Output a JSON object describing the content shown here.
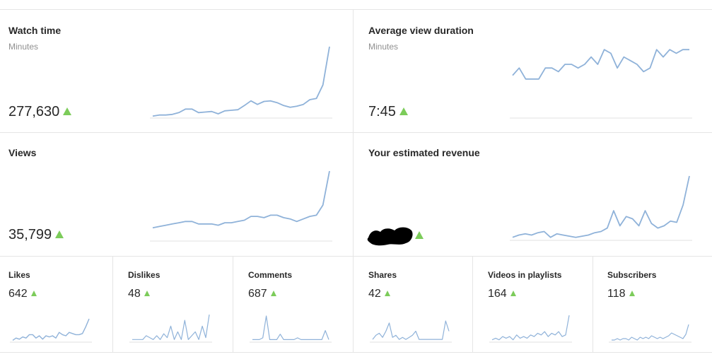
{
  "colors": {
    "line": "#8fb2d9",
    "baseline": "#e0e0e0",
    "up": "#7ccc5a",
    "divider": "#e5e5e5"
  },
  "icons": {
    "trend": "up-triangle-icon"
  },
  "big_cards": [
    {
      "title": "Watch time",
      "subtitle": "Minutes",
      "value": "277,630",
      "trend": "up",
      "values": [
        2,
        4,
        4,
        5,
        8,
        14,
        14,
        8,
        9,
        10,
        6,
        11,
        12,
        13,
        20,
        28,
        22,
        27,
        28,
        25,
        20,
        17,
        19,
        22,
        30,
        32,
        55,
        120
      ]
    },
    {
      "title": "Average view duration",
      "subtitle": "Minutes",
      "value": "7:45",
      "trend": "up",
      "values": [
        10,
        12,
        9,
        9,
        9,
        12,
        12,
        11,
        13,
        13,
        12,
        13,
        15,
        13,
        17,
        16,
        12,
        15,
        14,
        13,
        11,
        12,
        17,
        15,
        17,
        16,
        17,
        17
      ]
    },
    {
      "title": "Views",
      "subtitle": "",
      "value": "35,799",
      "trend": "up",
      "values": [
        10,
        11,
        12,
        13,
        14,
        15,
        15,
        13,
        13,
        13,
        12,
        14,
        14,
        15,
        16,
        19,
        19,
        18,
        20,
        20,
        18,
        17,
        15,
        17,
        19,
        20,
        28,
        55
      ]
    },
    {
      "title": "Your estimated revenue",
      "subtitle": "",
      "value": "",
      "trend": "up",
      "redacted": true,
      "values": [
        2,
        4,
        5,
        4,
        6,
        7,
        2,
        5,
        4,
        3,
        2,
        3,
        4,
        6,
        7,
        10,
        25,
        12,
        20,
        18,
        12,
        25,
        14,
        10,
        12,
        16,
        15,
        30,
        55
      ]
    }
  ],
  "small_cards": [
    {
      "title": "Likes",
      "value": "642",
      "trend": "up",
      "values": [
        1,
        3,
        2,
        4,
        3,
        6,
        6,
        3,
        5,
        2,
        5,
        4,
        5,
        3,
        8,
        6,
        5,
        8,
        7,
        6,
        6,
        7,
        13,
        20
      ]
    },
    {
      "title": "Dislikes",
      "value": "48",
      "trend": "up",
      "values": [
        1,
        1,
        1,
        1,
        3,
        2,
        1,
        3,
        1,
        4,
        2,
        8,
        1,
        5,
        1,
        11,
        1,
        3,
        5,
        1,
        8,
        2,
        14
      ]
    },
    {
      "title": "Comments",
      "value": "687",
      "trend": "up",
      "values": [
        1,
        1,
        1,
        2,
        14,
        1,
        1,
        1,
        4,
        1,
        1,
        1,
        1,
        2,
        1,
        1,
        1,
        1,
        1,
        1,
        1,
        6,
        1
      ]
    },
    {
      "title": "Shares",
      "value": "42",
      "trend": "up",
      "values": [
        1,
        3,
        4,
        2,
        5,
        9,
        2,
        3,
        1,
        2,
        1,
        2,
        3,
        5,
        1,
        1,
        1,
        1,
        1,
        1,
        1,
        1,
        10,
        5
      ]
    },
    {
      "title": "Videos in playlists",
      "value": "164",
      "trend": "up",
      "values": [
        1,
        2,
        1,
        3,
        2,
        3,
        1,
        4,
        2,
        3,
        2,
        4,
        3,
        5,
        4,
        6,
        3,
        5,
        4,
        6,
        3,
        4,
        16
      ]
    },
    {
      "title": "Subscribers",
      "value": "118",
      "trend": "up",
      "values": [
        1,
        1,
        2,
        1,
        2,
        2,
        1,
        3,
        2,
        1,
        3,
        2,
        3,
        2,
        4,
        3,
        2,
        3,
        2,
        3,
        4,
        6,
        5,
        4,
        3,
        2,
        5,
        12
      ]
    }
  ]
}
